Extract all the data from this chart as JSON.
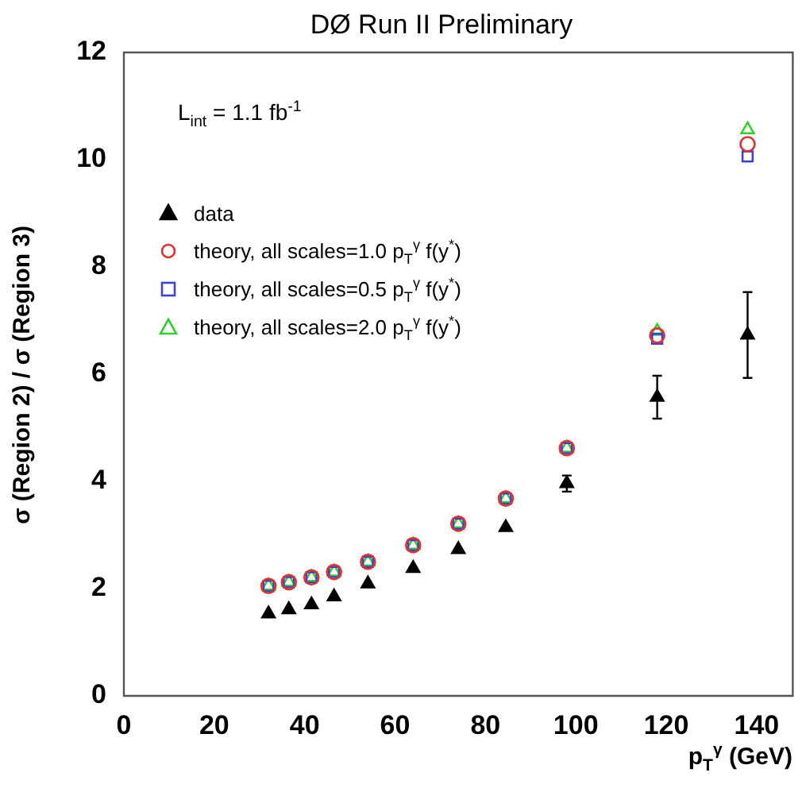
{
  "chart_data": {
    "type": "scatter",
    "title": "DØ Run II Preliminary",
    "xlabel": "p$_{T}$$^{γ}$ (GeV)",
    "ylabel": "σ (Region 2) / σ (Region 3)",
    "annotations": [
      "L$_{int}$ = 1.1 fb$^{-1}$"
    ],
    "x": [
      32,
      36.5,
      41.5,
      46.5,
      54,
      64,
      74,
      84.5,
      98,
      118,
      138
    ],
    "series": [
      {
        "name": "data",
        "color": "#000000",
        "marker": "triangle",
        "values": [
          1.53,
          1.61,
          1.7,
          1.85,
          2.09,
          2.38,
          2.73,
          3.14,
          3.96,
          5.57,
          6.73
        ],
        "errors": [
          null,
          null,
          null,
          null,
          null,
          null,
          null,
          null,
          0.15,
          0.4,
          0.8
        ]
      },
      {
        "name": "theory, all scales=1.0 p$_{T}$$^{γ}$ f(y$^{*}$)",
        "color": "#e03030",
        "marker": "circle",
        "values": [
          2.05,
          2.12,
          2.21,
          2.31,
          2.5,
          2.81,
          3.21,
          3.68,
          4.62,
          6.72,
          10.29
        ]
      },
      {
        "name": "theory, all scales=0.5 p$_{T}$$^{γ}$ f(y$^{*}$)",
        "color": "#4040d0",
        "marker": "square",
        "values": [
          2.05,
          2.12,
          2.21,
          2.31,
          2.5,
          2.81,
          3.21,
          3.68,
          4.62,
          6.66,
          10.06
        ]
      },
      {
        "name": "theory, all scales=2.0 p$_{T}$$^{γ}$ f(y$^{*}$)",
        "color": "#30d030",
        "marker": "triangle",
        "values": [
          2.05,
          2.12,
          2.21,
          2.31,
          2.5,
          2.81,
          3.21,
          3.68,
          4.62,
          6.8,
          10.56
        ]
      }
    ],
    "xlim": [
      0,
      148
    ],
    "xticks": [
      0,
      20,
      40,
      60,
      80,
      100,
      120,
      140
    ],
    "ylim": [
      0,
      12
    ],
    "yticks": [
      0,
      2,
      4,
      6,
      8,
      10,
      12
    ],
    "grid": false,
    "legend": "top left"
  }
}
